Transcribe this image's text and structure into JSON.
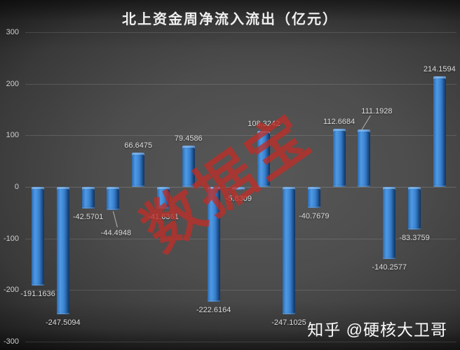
{
  "title": "北上资金周净流入流出（亿元）",
  "watermark": "数据宝",
  "credit": "知乎 @硬核大卫哥",
  "colors": {
    "background_center": "#585858",
    "background_edge": "#191919",
    "bar_blue": "#3d85d4",
    "bar_highlight": "#4f9ae3",
    "bar_shadow": "#1b4e93",
    "gridline": "rgba(255,255,255,0.13)",
    "axis_text": "#cfcfcf",
    "data_label_text": "#dcdcdc",
    "title_text": "#f0f0f0",
    "watermark_red": "#bc2e28",
    "credit_text": "#fafafa"
  },
  "chart_data": {
    "type": "bar",
    "title": "北上资金周净流入流出（亿元）",
    "xlabel": "",
    "ylabel": "",
    "x_axis_labels": "none",
    "ylim": [
      -300,
      300
    ],
    "ytick_interval": 100,
    "yticks": [
      300,
      200,
      100,
      0,
      -100,
      -200,
      -300
    ],
    "grid": true,
    "legend": false,
    "values": [
      -191.1636,
      -247.5094,
      -42.5701,
      -44.4948,
      66.6475,
      -41.6361,
      79.4586,
      -222.6164,
      -5.8309,
      108.3242,
      -247.1025,
      -40.7679,
      112.6684,
      111.1928,
      -140.2577,
      -83.3759,
      214.1594
    ],
    "data_labels": [
      "-191.1636",
      "-247.5094",
      "-42.5701",
      "-44.4948",
      "66.6475",
      "-41.6361",
      "79.4586",
      "-222.6164",
      "-5.8309",
      "108.3242",
      "-247.1025",
      "-40.7679",
      "112.6684",
      "111.1928",
      "-140.2577",
      "-83.3759",
      "214.1594"
    ],
    "label_leader_indices": [
      3,
      13
    ]
  }
}
